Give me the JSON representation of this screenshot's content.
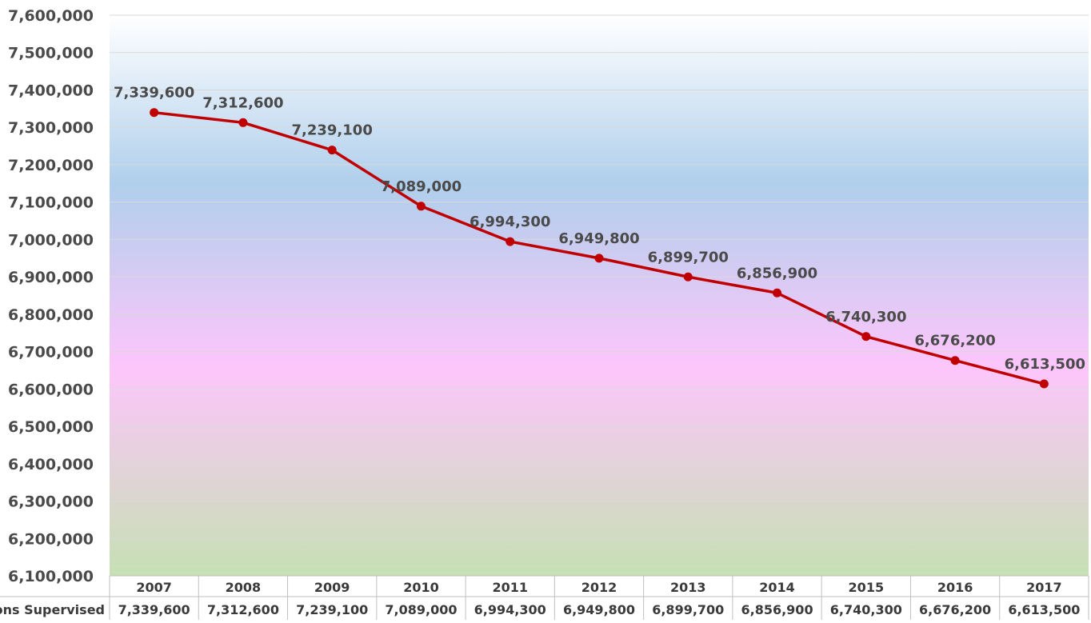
{
  "chart_data": {
    "type": "line",
    "categories": [
      "2007",
      "2008",
      "2009",
      "2010",
      "2011",
      "2012",
      "2013",
      "2014",
      "2015",
      "2016",
      "2017"
    ],
    "series": [
      {
        "name": "Persons Supervised",
        "values": [
          7339600,
          7312600,
          7239100,
          7089000,
          6994300,
          6949800,
          6899700,
          6856900,
          6740300,
          6676200,
          6613500
        ],
        "labels": [
          "7,339,600",
          "7,312,600",
          "7,239,100",
          "7,089,000",
          "6,994,300",
          "6,949,800",
          "6,899,700",
          "6,856,900",
          "6,740,300",
          "6,676,200",
          "6,613,500"
        ],
        "color": "#c00000"
      }
    ],
    "ylim": [
      6100000,
      7600000
    ],
    "y_ticks": [
      "6,100,000",
      "6,200,000",
      "6,300,000",
      "6,400,000",
      "6,500,000",
      "6,600,000",
      "6,700,000",
      "6,800,000",
      "6,900,000",
      "7,000,000",
      "7,100,000",
      "7,200,000",
      "7,300,000",
      "7,400,000",
      "7,500,000",
      "7,600,000"
    ],
    "table_row_label": "Persons Supervised",
    "title": "",
    "xlabel": "",
    "ylabel": "",
    "grid": true,
    "legend": "none",
    "background_gradient": [
      "#ffffff",
      "#b0cfec",
      "#fdc6fb",
      "#c6e0b4"
    ]
  }
}
